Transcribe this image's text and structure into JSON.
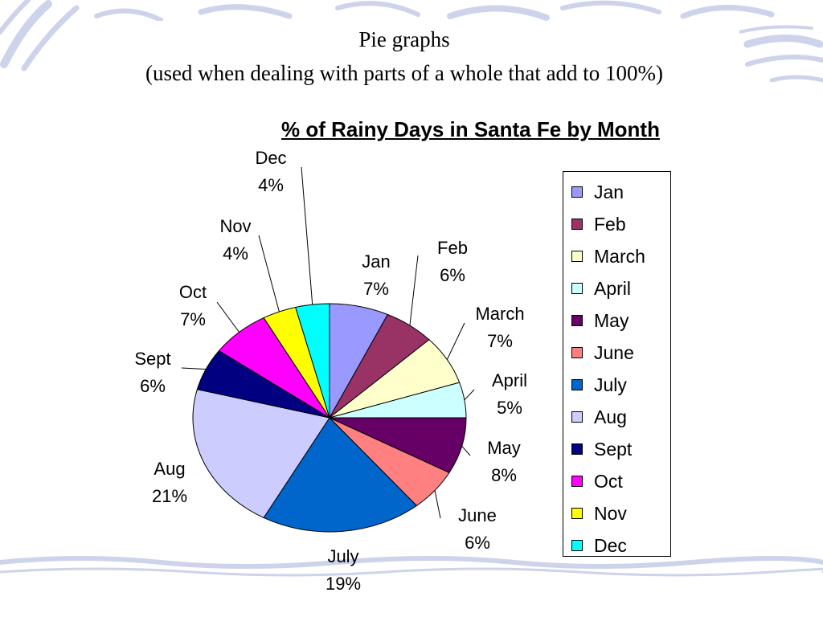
{
  "heading": {
    "line1": "Pie graphs",
    "line2": "(used when dealing with parts of a whole that add to 100%)"
  },
  "chart_data": {
    "type": "pie",
    "title": "% of Rainy Days in Santa Fe by Month",
    "legend_position": "right",
    "slices": [
      {
        "legend": "Jan",
        "label": "Jan",
        "value": 7,
        "value_label": "7%",
        "color": "#9999ff"
      },
      {
        "legend": "Feb",
        "label": "Feb",
        "value": 6,
        "value_label": "6%",
        "color": "#993366"
      },
      {
        "legend": "March",
        "label": "March",
        "value": 7,
        "value_label": "7%",
        "color": "#ffffcc"
      },
      {
        "legend": "April",
        "label": "April",
        "value": 5,
        "value_label": "5%",
        "color": "#ccffff"
      },
      {
        "legend": "May",
        "label": "May",
        "value": 8,
        "value_label": "8%",
        "color": "#660066"
      },
      {
        "legend": "June",
        "label": "June",
        "value": 6,
        "value_label": "6%",
        "color": "#ff8080"
      },
      {
        "legend": "July",
        "label": "July",
        "value": 19,
        "value_label": "19%",
        "color": "#0066cc"
      },
      {
        "legend": "Aug",
        "label": "Aug",
        "value": 21,
        "value_label": "21%",
        "color": "#ccccff"
      },
      {
        "legend": "Sept",
        "label": "Sept",
        "value": 6,
        "value_label": "6%",
        "color": "#000080"
      },
      {
        "legend": "Oct",
        "label": "Oct",
        "value": 7,
        "value_label": "7%",
        "color": "#ff00ff"
      },
      {
        "legend": "Nov",
        "label": "Nov",
        "value": 4,
        "value_label": "4%",
        "color": "#ffff00"
      },
      {
        "legend": "Dec",
        "label": "Dec",
        "value": 4,
        "value_label": "4%",
        "color": "#00ffff"
      }
    ]
  }
}
